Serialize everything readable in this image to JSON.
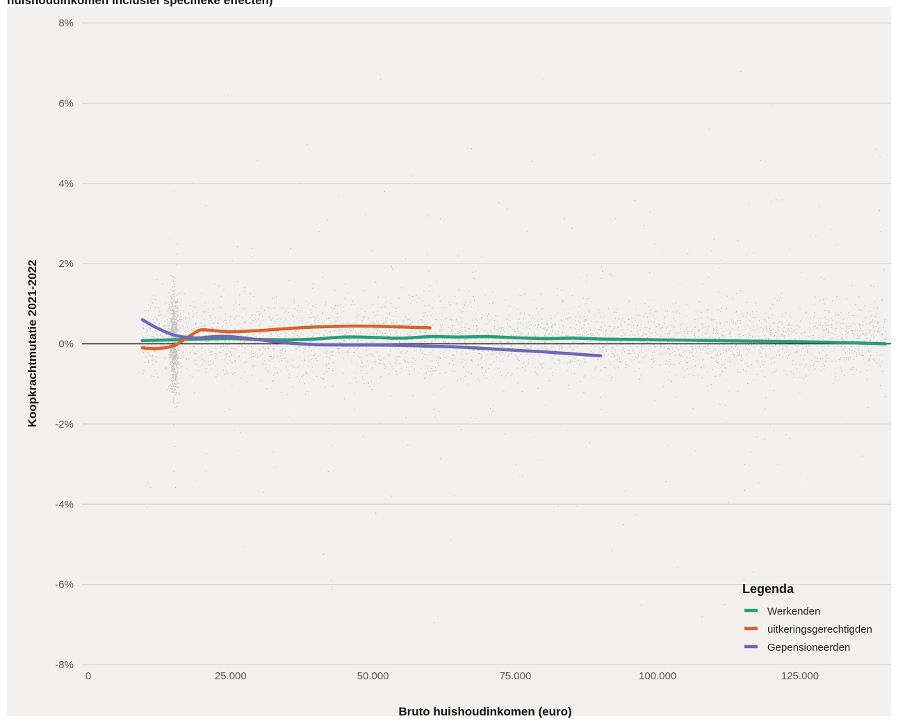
{
  "title": "huishoudinkomen inclusief specifieke effecten)",
  "chart_data": {
    "type": "scatter",
    "xlabel": "Bruto huishoudinkomen (euro)",
    "ylabel": "Koopkrachtmutatie 2021-2022",
    "xlim": [
      -2000,
      140000
    ],
    "ylim": [
      -8,
      8
    ],
    "x_ticks": [
      0,
      25000,
      50000,
      75000,
      100000,
      125000
    ],
    "x_tick_labels": [
      "0",
      "25.000",
      "50.000",
      "75.000",
      "100.000",
      "125.000"
    ],
    "y_ticks": [
      8,
      6,
      4,
      2,
      0,
      -2,
      -4,
      -6,
      -8
    ],
    "y_tick_labels": [
      "8%",
      "6%",
      "4%",
      "2%",
      "0%",
      "-2%",
      "-4%",
      "-6%",
      "-8%"
    ],
    "grid": true,
    "scatter_points": "dense grey cloud of individual households, concentrated between about -1% and +1%, x from about 9.000 to 140.000",
    "legend": {
      "title": "Legenda",
      "placement": "bottom-right"
    },
    "series": [
      {
        "name": "Werkenden",
        "color": "#2a9d7a",
        "x": [
          9500,
          15000,
          20000,
          25000,
          30000,
          35000,
          40000,
          45000,
          50000,
          55000,
          60000,
          65000,
          70000,
          75000,
          80000,
          85000,
          90000,
          95000,
          100000,
          110000,
          120000,
          130000,
          140000
        ],
        "y": [
          0.08,
          0.1,
          0.12,
          0.13,
          0.11,
          0.1,
          0.12,
          0.17,
          0.16,
          0.14,
          0.18,
          0.17,
          0.18,
          0.15,
          0.13,
          0.14,
          0.12,
          0.11,
          0.1,
          0.08,
          0.06,
          0.04,
          0.0
        ]
      },
      {
        "name": "uitkeringsgerechtigden",
        "color": "#d9632a",
        "x": [
          9500,
          12000,
          15000,
          17000,
          19000,
          20000,
          22000,
          25000,
          30000,
          35000,
          40000,
          45000,
          50000,
          55000,
          60000
        ],
        "y": [
          -0.1,
          -0.12,
          -0.05,
          0.12,
          0.3,
          0.35,
          0.33,
          0.3,
          0.33,
          0.38,
          0.42,
          0.44,
          0.44,
          0.42,
          0.4
        ]
      },
      {
        "name": "Gepensioneerden",
        "color": "#6f68b4",
        "x": [
          9500,
          12000,
          15000,
          18000,
          20000,
          22000,
          25000,
          30000,
          35000,
          40000,
          45000,
          50000,
          55000,
          60000,
          65000,
          70000,
          75000,
          80000,
          85000,
          90000
        ],
        "y": [
          0.6,
          0.4,
          0.22,
          0.15,
          0.15,
          0.18,
          0.18,
          0.1,
          0.02,
          -0.02,
          -0.03,
          -0.03,
          -0.04,
          -0.06,
          -0.08,
          -0.12,
          -0.16,
          -0.2,
          -0.25,
          -0.3
        ]
      }
    ]
  }
}
